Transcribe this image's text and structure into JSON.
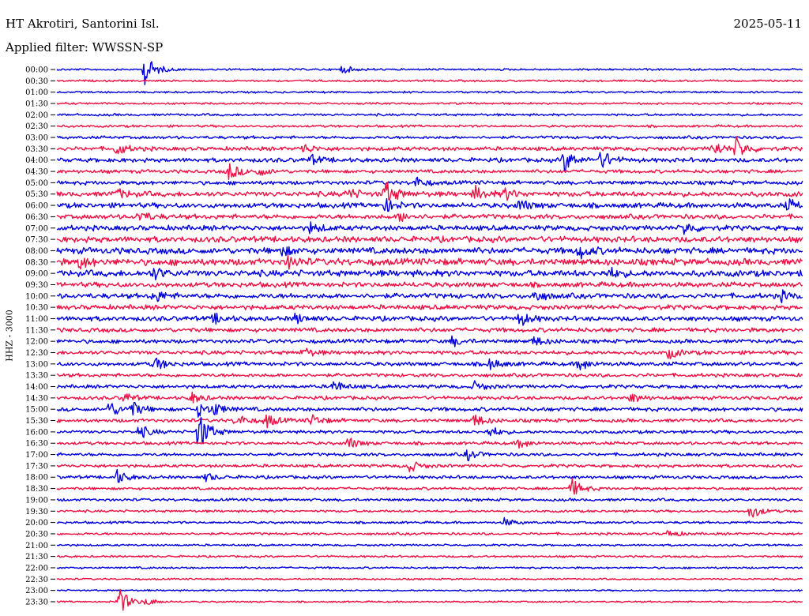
{
  "header": {
    "station": "HT Akrotiri, Santorini Isl.",
    "date": "2025-05-11",
    "filter": "Applied filter: WWSSN-SP"
  },
  "colors": {
    "a": "#0000dd",
    "b": "#ee1144"
  },
  "chart_data": {
    "type": "line",
    "title": "HT Akrotiri, Santorini Isl.",
    "ylabel": "HHZ - 3000",
    "grid": false,
    "legend": "none",
    "row_labels": [
      "00:00",
      "00:30",
      "01:00",
      "01:30",
      "02:00",
      "02:30",
      "03:00",
      "03:30",
      "04:00",
      "04:30",
      "05:00",
      "05:30",
      "06:00",
      "06:30",
      "07:00",
      "07:30",
      "08:00",
      "08:30",
      "09:00",
      "09:30",
      "10:00",
      "10:30",
      "11:00",
      "11:30",
      "12:00",
      "12:30",
      "13:00",
      "13:30",
      "14:00",
      "14:30",
      "15:00",
      "15:30",
      "16:00",
      "16:30",
      "17:00",
      "17:30",
      "18:00",
      "18:30",
      "19:00",
      "19:30",
      "20:00",
      "20:30",
      "21:00",
      "21:30",
      "22:00",
      "22:30",
      "23:00",
      "23:30"
    ],
    "series_colors": [
      "a",
      "b"
    ],
    "noise_level": [
      1,
      1,
      1,
      1,
      1.2,
      1.2,
      1.5,
      2,
      2.2,
      1.8,
      2,
      2.6,
      2.6,
      2.4,
      2.6,
      3,
      3.2,
      3.4,
      3.2,
      2.6,
      2.6,
      2.4,
      2.4,
      2.2,
      2,
      2,
      2,
      1.8,
      1.8,
      1.8,
      2,
      1.8,
      1.6,
      1.6,
      1.6,
      1.6,
      1.6,
      1.4,
      1.4,
      1.2,
      1.2,
      1.2,
      1,
      1,
      1,
      0.8,
      0.8,
      0.8
    ],
    "events": [
      {
        "row": 0,
        "t": 0.118,
        "amp": 20
      },
      {
        "row": 0,
        "t": 0.382,
        "amp": 5
      },
      {
        "row": 7,
        "t": 0.08,
        "amp": 8
      },
      {
        "row": 7,
        "t": 0.33,
        "amp": 6
      },
      {
        "row": 7,
        "t": 0.88,
        "amp": 9
      },
      {
        "row": 7,
        "t": 0.91,
        "amp": 14
      },
      {
        "row": 8,
        "t": 0.34,
        "amp": 6
      },
      {
        "row": 8,
        "t": 0.68,
        "amp": 14
      },
      {
        "row": 8,
        "t": 0.73,
        "amp": 12
      },
      {
        "row": 9,
        "t": 0.23,
        "amp": 11
      },
      {
        "row": 9,
        "t": 0.27,
        "amp": 5
      },
      {
        "row": 10,
        "t": 0.48,
        "amp": 7
      },
      {
        "row": 11,
        "t": 0.08,
        "amp": 6
      },
      {
        "row": 11,
        "t": 0.39,
        "amp": 7
      },
      {
        "row": 11,
        "t": 0.44,
        "amp": 16
      },
      {
        "row": 11,
        "t": 0.56,
        "amp": 9
      },
      {
        "row": 11,
        "t": 0.6,
        "amp": 7
      },
      {
        "row": 12,
        "t": 0.44,
        "amp": 8
      },
      {
        "row": 12,
        "t": 0.62,
        "amp": 7
      },
      {
        "row": 12,
        "t": 0.98,
        "amp": 7
      },
      {
        "row": 13,
        "t": 0.11,
        "amp": 7
      },
      {
        "row": 13,
        "t": 0.46,
        "amp": 6
      },
      {
        "row": 14,
        "t": 0.34,
        "amp": 6
      },
      {
        "row": 14,
        "t": 0.84,
        "amp": 8
      },
      {
        "row": 16,
        "t": 0.3,
        "amp": 6
      },
      {
        "row": 16,
        "t": 0.7,
        "amp": 9
      },
      {
        "row": 17,
        "t": 0.03,
        "amp": 7
      },
      {
        "row": 17,
        "t": 0.31,
        "amp": 7
      },
      {
        "row": 18,
        "t": 0.13,
        "amp": 7
      },
      {
        "row": 18,
        "t": 0.74,
        "amp": 6
      },
      {
        "row": 20,
        "t": 0.13,
        "amp": 8
      },
      {
        "row": 20,
        "t": 0.64,
        "amp": 7
      },
      {
        "row": 20,
        "t": 0.97,
        "amp": 6
      },
      {
        "row": 22,
        "t": 0.21,
        "amp": 6
      },
      {
        "row": 22,
        "t": 0.32,
        "amp": 6
      },
      {
        "row": 22,
        "t": 0.62,
        "amp": 9
      },
      {
        "row": 24,
        "t": 0.53,
        "amp": 6
      },
      {
        "row": 24,
        "t": 0.64,
        "amp": 6
      },
      {
        "row": 25,
        "t": 0.33,
        "amp": 6
      },
      {
        "row": 25,
        "t": 0.82,
        "amp": 7
      },
      {
        "row": 26,
        "t": 0.13,
        "amp": 9
      },
      {
        "row": 26,
        "t": 0.58,
        "amp": 7
      },
      {
        "row": 26,
        "t": 0.7,
        "amp": 8
      },
      {
        "row": 28,
        "t": 0.37,
        "amp": 8
      },
      {
        "row": 28,
        "t": 0.56,
        "amp": 6
      },
      {
        "row": 29,
        "t": 0.09,
        "amp": 6
      },
      {
        "row": 29,
        "t": 0.18,
        "amp": 7
      },
      {
        "row": 29,
        "t": 0.77,
        "amp": 6
      },
      {
        "row": 30,
        "t": 0.07,
        "amp": 10
      },
      {
        "row": 30,
        "t": 0.1,
        "amp": 9
      },
      {
        "row": 30,
        "t": 0.19,
        "amp": 9
      },
      {
        "row": 30,
        "t": 0.21,
        "amp": 7
      },
      {
        "row": 31,
        "t": 0.24,
        "amp": 8
      },
      {
        "row": 31,
        "t": 0.28,
        "amp": 9
      },
      {
        "row": 31,
        "t": 0.34,
        "amp": 8
      },
      {
        "row": 31,
        "t": 0.56,
        "amp": 8
      },
      {
        "row": 32,
        "t": 0.11,
        "amp": 9
      },
      {
        "row": 32,
        "t": 0.19,
        "amp": 26
      },
      {
        "row": 32,
        "t": 0.58,
        "amp": 7
      },
      {
        "row": 33,
        "t": 0.39,
        "amp": 8
      },
      {
        "row": 33,
        "t": 0.62,
        "amp": 6
      },
      {
        "row": 34,
        "t": 0.55,
        "amp": 7
      },
      {
        "row": 35,
        "t": 0.47,
        "amp": 9
      },
      {
        "row": 36,
        "t": 0.08,
        "amp": 9
      },
      {
        "row": 36,
        "t": 0.2,
        "amp": 5
      },
      {
        "row": 37,
        "t": 0.69,
        "amp": 12
      },
      {
        "row": 39,
        "t": 0.93,
        "amp": 10
      },
      {
        "row": 40,
        "t": 0.6,
        "amp": 5
      },
      {
        "row": 41,
        "t": 0.82,
        "amp": 5
      },
      {
        "row": 47,
        "t": 0.083,
        "amp": 18
      },
      {
        "row": 47,
        "t": 0.12,
        "amp": 4
      }
    ]
  }
}
